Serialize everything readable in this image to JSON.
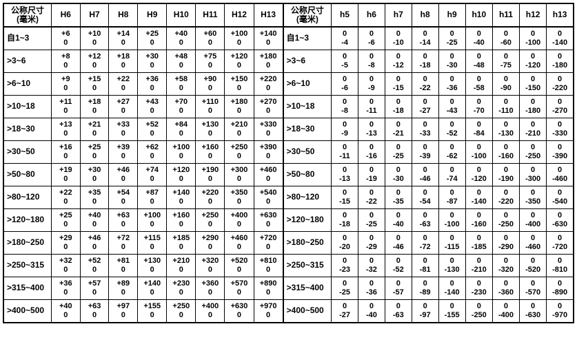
{
  "header_label_lines": [
    "公称尺寸",
    "(毫米)"
  ],
  "left": {
    "columns": [
      "H6",
      "H7",
      "H8",
      "H9",
      "H10",
      "H11",
      "H12",
      "H13"
    ],
    "rows": [
      {
        "label": "自1~3",
        "vals": [
          [
            "+6",
            "0"
          ],
          [
            "+10",
            "0"
          ],
          [
            "+14",
            "0"
          ],
          [
            "+25",
            "0"
          ],
          [
            "+40",
            "0"
          ],
          [
            "+60",
            "0"
          ],
          [
            "+100",
            "0"
          ],
          [
            "+140",
            "0"
          ]
        ]
      },
      {
        "label": ">3~6",
        "vals": [
          [
            "+8",
            "0"
          ],
          [
            "+12",
            "0"
          ],
          [
            "+18",
            "0"
          ],
          [
            "+30",
            "0"
          ],
          [
            "+48",
            "0"
          ],
          [
            "+75",
            "0"
          ],
          [
            "+120",
            "0"
          ],
          [
            "+180",
            "0"
          ]
        ]
      },
      {
        "label": ">6~10",
        "vals": [
          [
            "+9",
            "0"
          ],
          [
            "+15",
            "0"
          ],
          [
            "+22",
            "0"
          ],
          [
            "+36",
            "0"
          ],
          [
            "+58",
            "0"
          ],
          [
            "+90",
            "0"
          ],
          [
            "+150",
            "0"
          ],
          [
            "+220",
            "0"
          ]
        ]
      },
      {
        "label": ">10~18",
        "vals": [
          [
            "+11",
            "0"
          ],
          [
            "+18",
            "0"
          ],
          [
            "+27",
            "0"
          ],
          [
            "+43",
            "0"
          ],
          [
            "+70",
            "0"
          ],
          [
            "+110",
            "0"
          ],
          [
            "+180",
            "0"
          ],
          [
            "+270",
            "0"
          ]
        ]
      },
      {
        "label": ">18~30",
        "vals": [
          [
            "+13",
            "0"
          ],
          [
            "+21",
            "0"
          ],
          [
            "+33",
            "0"
          ],
          [
            "+52",
            "0"
          ],
          [
            "+84",
            "0"
          ],
          [
            "+130",
            "0"
          ],
          [
            "+210",
            "0"
          ],
          [
            "+330",
            "0"
          ]
        ]
      },
      {
        "label": ">30~50",
        "vals": [
          [
            "+16",
            "0"
          ],
          [
            "+25",
            "0"
          ],
          [
            "+39",
            "0"
          ],
          [
            "+62",
            "0"
          ],
          [
            "+100",
            "0"
          ],
          [
            "+160",
            "0"
          ],
          [
            "+250",
            "0"
          ],
          [
            "+390",
            "0"
          ]
        ]
      },
      {
        "label": ">50~80",
        "vals": [
          [
            "+19",
            "0"
          ],
          [
            "+30",
            "0"
          ],
          [
            "+46",
            "0"
          ],
          [
            "+74",
            "0"
          ],
          [
            "+120",
            "0"
          ],
          [
            "+190",
            "0"
          ],
          [
            "+300",
            "0"
          ],
          [
            "+460",
            "0"
          ]
        ]
      },
      {
        "label": ">80~120",
        "vals": [
          [
            "+22",
            "0"
          ],
          [
            "+35",
            "0"
          ],
          [
            "+54",
            "0"
          ],
          [
            "+87",
            "0"
          ],
          [
            "+140",
            "0"
          ],
          [
            "+220",
            "0"
          ],
          [
            "+350",
            "0"
          ],
          [
            "+540",
            "0"
          ]
        ]
      },
      {
        "label": ">120~180",
        "vals": [
          [
            "+25",
            "0"
          ],
          [
            "+40",
            "0"
          ],
          [
            "+63",
            "0"
          ],
          [
            "+100",
            "0"
          ],
          [
            "+160",
            "0"
          ],
          [
            "+250",
            "0"
          ],
          [
            "+400",
            "0"
          ],
          [
            "+630",
            "0"
          ]
        ]
      },
      {
        "label": ">180~250",
        "vals": [
          [
            "+29",
            "0"
          ],
          [
            "+46",
            "0"
          ],
          [
            "+72",
            "0"
          ],
          [
            "+115",
            "0"
          ],
          [
            "+185",
            "0"
          ],
          [
            "+290",
            "0"
          ],
          [
            "+460",
            "0"
          ],
          [
            "+720",
            "0"
          ]
        ]
      },
      {
        "label": ">250~315",
        "vals": [
          [
            "+32",
            "0"
          ],
          [
            "+52",
            "0"
          ],
          [
            "+81",
            "0"
          ],
          [
            "+130",
            "0"
          ],
          [
            "+210",
            "0"
          ],
          [
            "+320",
            "0"
          ],
          [
            "+520",
            "0"
          ],
          [
            "+810",
            "0"
          ]
        ]
      },
      {
        "label": ">315~400",
        "vals": [
          [
            "+36",
            "0"
          ],
          [
            "+57",
            "0"
          ],
          [
            "+89",
            "0"
          ],
          [
            "+140",
            "0"
          ],
          [
            "+230",
            "0"
          ],
          [
            "+360",
            "0"
          ],
          [
            "+570",
            "0"
          ],
          [
            "+890",
            "0"
          ]
        ]
      },
      {
        "label": ">400~500",
        "vals": [
          [
            "+40",
            "0"
          ],
          [
            "+63",
            "0"
          ],
          [
            "+97",
            "0"
          ],
          [
            "+155",
            "0"
          ],
          [
            "+250",
            "0"
          ],
          [
            "+400",
            "0"
          ],
          [
            "+630",
            "0"
          ],
          [
            "+970",
            "0"
          ]
        ]
      }
    ]
  },
  "right": {
    "columns": [
      "h5",
      "h6",
      "h7",
      "h8",
      "h9",
      "h10",
      "h11",
      "h12",
      "h13"
    ],
    "rows": [
      {
        "label": "自1~3",
        "vals": [
          [
            "0",
            "-4"
          ],
          [
            "0",
            "-6"
          ],
          [
            "0",
            "-10"
          ],
          [
            "0",
            "-14"
          ],
          [
            "0",
            "-25"
          ],
          [
            "0",
            "-40"
          ],
          [
            "0",
            "-60"
          ],
          [
            "0",
            "-100"
          ],
          [
            "0",
            "-140"
          ]
        ]
      },
      {
        "label": ">3~6",
        "vals": [
          [
            "0",
            "-5"
          ],
          [
            "0",
            "-8"
          ],
          [
            "0",
            "-12"
          ],
          [
            "0",
            "-18"
          ],
          [
            "0",
            "-30"
          ],
          [
            "0",
            "-48"
          ],
          [
            "0",
            "-75"
          ],
          [
            "0",
            "-120"
          ],
          [
            "0",
            "-180"
          ]
        ]
      },
      {
        "label": ">6~10",
        "vals": [
          [
            "0",
            "-6"
          ],
          [
            "0",
            "-9"
          ],
          [
            "0",
            "-15"
          ],
          [
            "0",
            "-22"
          ],
          [
            "0",
            "-36"
          ],
          [
            "0",
            "-58"
          ],
          [
            "0",
            "-90"
          ],
          [
            "0",
            "-150"
          ],
          [
            "0",
            "-220"
          ]
        ]
      },
      {
        "label": ">10~18",
        "vals": [
          [
            "0",
            "-8"
          ],
          [
            "0",
            "-11"
          ],
          [
            "0",
            "-18"
          ],
          [
            "0",
            "-27"
          ],
          [
            "0",
            "-43"
          ],
          [
            "0",
            "-70"
          ],
          [
            "0",
            "-110"
          ],
          [
            "0",
            "-180"
          ],
          [
            "0",
            "-270"
          ]
        ]
      },
      {
        "label": ">18~30",
        "vals": [
          [
            "0",
            "-9"
          ],
          [
            "0",
            "-13"
          ],
          [
            "0",
            "-21"
          ],
          [
            "0",
            "-33"
          ],
          [
            "0",
            "-52"
          ],
          [
            "0",
            "-84"
          ],
          [
            "0",
            "-130"
          ],
          [
            "0",
            "-210"
          ],
          [
            "0",
            "-330"
          ]
        ]
      },
      {
        "label": ">30~50",
        "vals": [
          [
            "0",
            "-11"
          ],
          [
            "0",
            "-16"
          ],
          [
            "0",
            "-25"
          ],
          [
            "0",
            "-39"
          ],
          [
            "0",
            "-62"
          ],
          [
            "0",
            "-100"
          ],
          [
            "0",
            "-160"
          ],
          [
            "0",
            "-250"
          ],
          [
            "0",
            "-390"
          ]
        ]
      },
      {
        "label": ">50~80",
        "vals": [
          [
            "0",
            "-13"
          ],
          [
            "0",
            "-19"
          ],
          [
            "0",
            "-30"
          ],
          [
            "0",
            "-46"
          ],
          [
            "0",
            "-74"
          ],
          [
            "0",
            "-120"
          ],
          [
            "0",
            "-190"
          ],
          [
            "0",
            "-300"
          ],
          [
            "0",
            "-460"
          ]
        ]
      },
      {
        "label": ">80~120",
        "vals": [
          [
            "0",
            "-15"
          ],
          [
            "0",
            "-22"
          ],
          [
            "0",
            "-35"
          ],
          [
            "0",
            "-54"
          ],
          [
            "0",
            "-87"
          ],
          [
            "0",
            "-140"
          ],
          [
            "0",
            "-220"
          ],
          [
            "0",
            "-350"
          ],
          [
            "0",
            "-540"
          ]
        ]
      },
      {
        "label": ">120~180",
        "vals": [
          [
            "0",
            "-18"
          ],
          [
            "0",
            "-25"
          ],
          [
            "0",
            "-40"
          ],
          [
            "0",
            "-63"
          ],
          [
            "0",
            "-100"
          ],
          [
            "0",
            "-160"
          ],
          [
            "0",
            "-250"
          ],
          [
            "0",
            "-400"
          ],
          [
            "0",
            "-630"
          ]
        ]
      },
      {
        "label": ">180~250",
        "vals": [
          [
            "0",
            "-20"
          ],
          [
            "0",
            "-29"
          ],
          [
            "0",
            "-46"
          ],
          [
            "0",
            "-72"
          ],
          [
            "0",
            "-115"
          ],
          [
            "0",
            "-185"
          ],
          [
            "0",
            "-290"
          ],
          [
            "0",
            "-460"
          ],
          [
            "0",
            "-720"
          ]
        ]
      },
      {
        "label": ">250~315",
        "vals": [
          [
            "0",
            "-23"
          ],
          [
            "0",
            "-32"
          ],
          [
            "0",
            "-52"
          ],
          [
            "0",
            "-81"
          ],
          [
            "0",
            "-130"
          ],
          [
            "0",
            "-210"
          ],
          [
            "0",
            "-320"
          ],
          [
            "0",
            "-520"
          ],
          [
            "0",
            "-810"
          ]
        ]
      },
      {
        "label": ">315~400",
        "vals": [
          [
            "0",
            "-25"
          ],
          [
            "0",
            "-36"
          ],
          [
            "0",
            "-57"
          ],
          [
            "0",
            "-89"
          ],
          [
            "0",
            "-140"
          ],
          [
            "0",
            "-230"
          ],
          [
            "0",
            "-360"
          ],
          [
            "0",
            "-570"
          ],
          [
            "0",
            "-890"
          ]
        ]
      },
      {
        "label": ">400~500",
        "vals": [
          [
            "0",
            "-27"
          ],
          [
            "0",
            "-40"
          ],
          [
            "0",
            "-63"
          ],
          [
            "0",
            "-97"
          ],
          [
            "0",
            "-155"
          ],
          [
            "0",
            "-250"
          ],
          [
            "0",
            "-400"
          ],
          [
            "0",
            "-630"
          ],
          [
            "0",
            "-970"
          ]
        ]
      }
    ]
  }
}
